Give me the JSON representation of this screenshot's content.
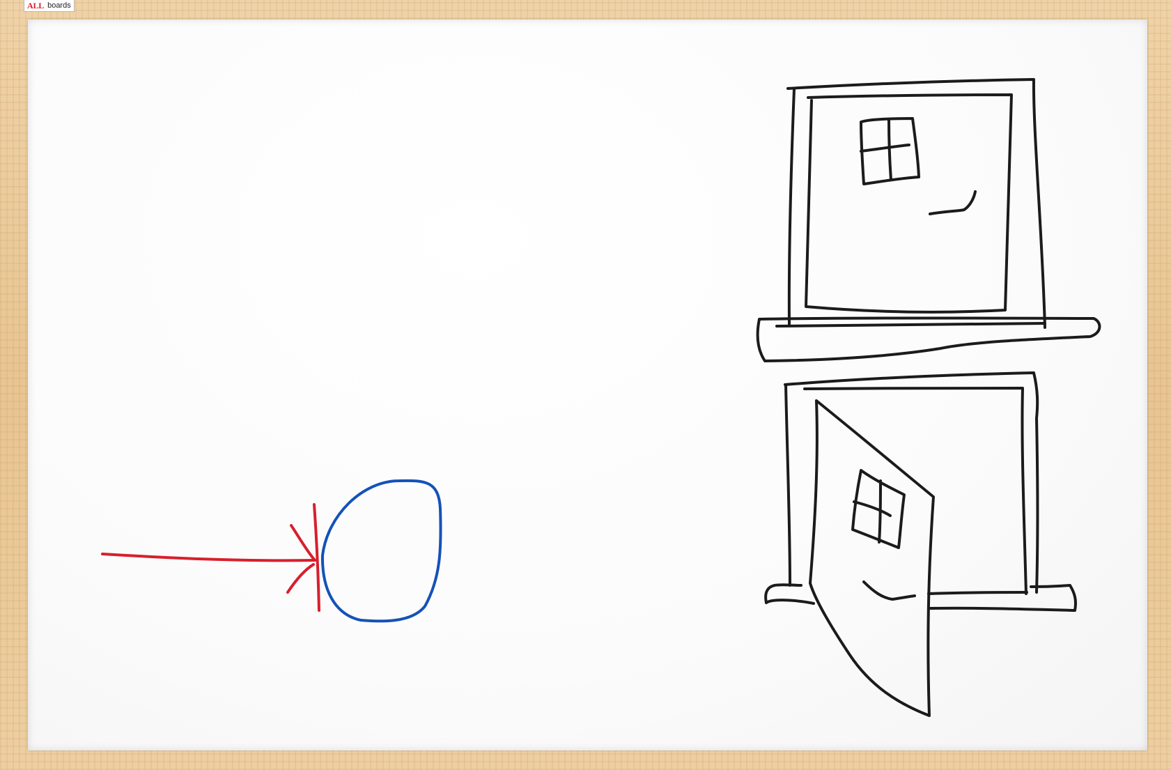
{
  "logo": {
    "brand": "ALL",
    "sub": "boards"
  },
  "colors": {
    "red_stroke": "#d81f2c",
    "blue_stroke": "#1452b8",
    "black_stroke": "#1b1b1b",
    "frame_wood": "#e8c592",
    "board_surface": "#ffffff"
  },
  "sketches": [
    {
      "name": "red-arrow-lines",
      "color": "red"
    },
    {
      "name": "blue-circle",
      "color": "blue"
    },
    {
      "name": "laptop-closed",
      "color": "black"
    },
    {
      "name": "laptop-open",
      "color": "black"
    }
  ]
}
